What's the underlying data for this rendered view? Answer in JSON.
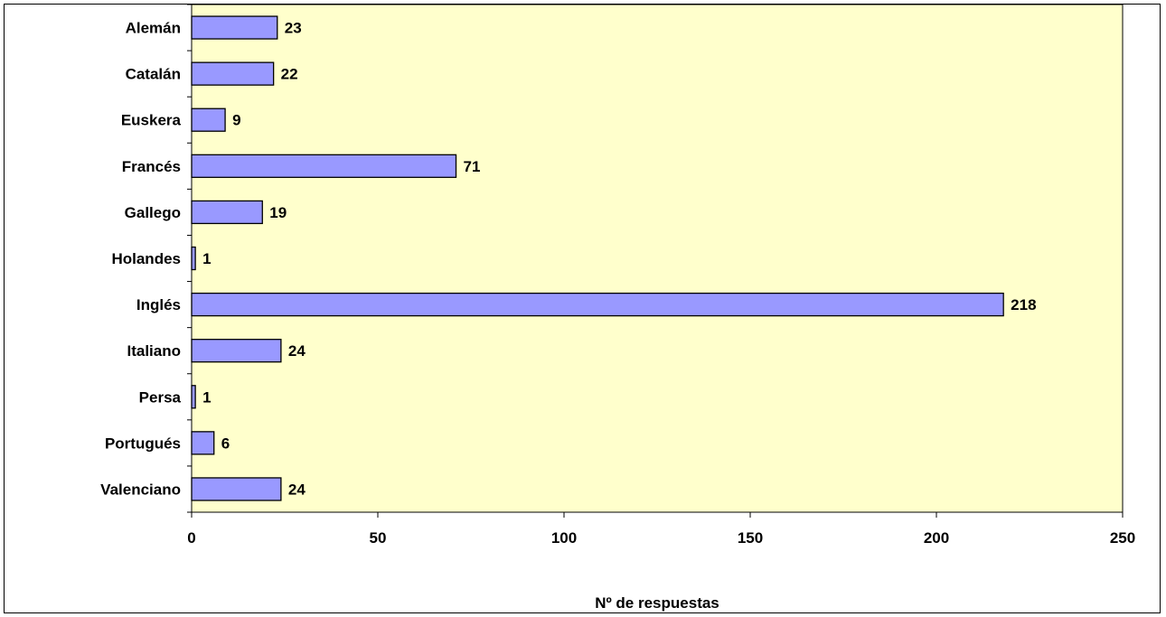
{
  "chart_data": {
    "type": "bar",
    "orientation": "horizontal",
    "categories": [
      "Alemán",
      "Catalán",
      "Euskera",
      "Francés",
      "Gallego",
      "Holandes",
      "Inglés",
      "Italiano",
      "Persa",
      "Portugués",
      "Valenciano"
    ],
    "values": [
      23,
      22,
      9,
      71,
      19,
      1,
      218,
      24,
      1,
      6,
      24
    ],
    "data_labels": [
      "23",
      "22",
      "9",
      "71",
      "19",
      "1",
      "218",
      "24",
      "1",
      "6",
      "24"
    ],
    "xlabel": "Nº de respuestas",
    "ylabel": "",
    "xlim": [
      0,
      250
    ],
    "xticks": [
      "0",
      "50",
      "100",
      "150",
      "200",
      "250"
    ],
    "grid": false,
    "colors": {
      "bar_fill": "#9999ff",
      "bar_stroke": "#000000",
      "plot_background": "#ffffcc",
      "axis": "#000000"
    }
  }
}
